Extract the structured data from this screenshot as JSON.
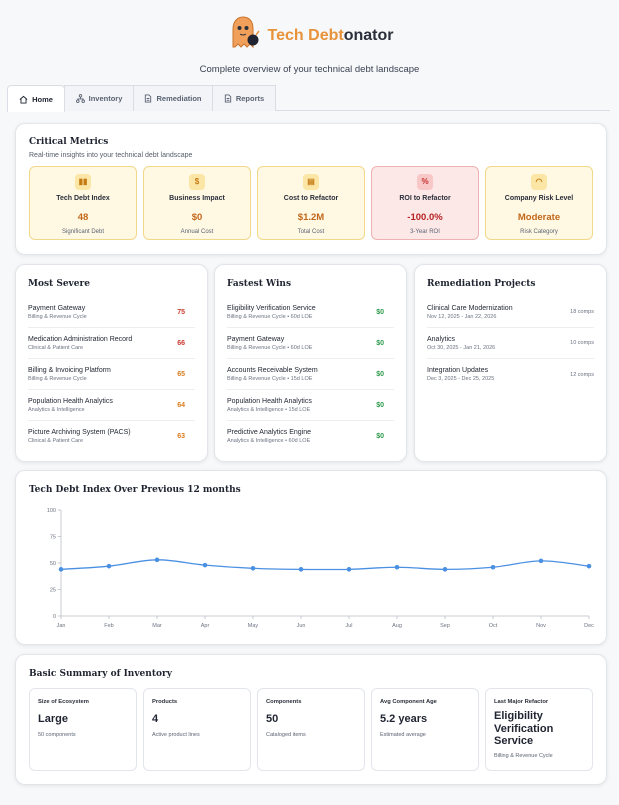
{
  "header": {
    "title_part1": "Tech Debt",
    "title_part2": "onator",
    "subtitle": "Complete overview of your technical debt landscape",
    "logo_icon": "ghost-mascot-icon"
  },
  "tabs": [
    {
      "label": "Home",
      "icon": "home-icon",
      "active": true
    },
    {
      "label": "Inventory",
      "icon": "hierarchy-icon",
      "active": false
    },
    {
      "label": "Remediation",
      "icon": "document-icon",
      "active": false
    },
    {
      "label": "Reports",
      "icon": "document-icon",
      "active": false
    }
  ],
  "critical_metrics": {
    "title": "Critical Metrics",
    "subtitle": "Real-time insights into your technical debt landscape",
    "items": [
      {
        "label": "Tech Debt Index",
        "value": "48",
        "caption": "Significant Debt",
        "icon": "chart-icon",
        "glyph": "▮▮"
      },
      {
        "label": "Business Impact",
        "value": "$0",
        "caption": "Annual Cost",
        "icon": "dollar-icon",
        "glyph": "$"
      },
      {
        "label": "Cost to Refactor",
        "value": "$1.2M",
        "caption": "Total Cost",
        "icon": "calculator-icon",
        "glyph": "▤"
      },
      {
        "label": "ROI to Refactor",
        "value": "-100.0%",
        "caption": "3-Year ROI",
        "icon": "percent-icon",
        "glyph": "%"
      },
      {
        "label": "Company Risk Level",
        "value": "Moderate",
        "caption": "Risk Category",
        "icon": "gauge-icon",
        "glyph": "◠"
      }
    ]
  },
  "most_severe": {
    "title": "Most Severe",
    "items": [
      {
        "name": "Payment Gateway",
        "meta": "Billing & Revenue Cycle",
        "value": "75"
      },
      {
        "name": "Medication Administration Record",
        "meta": "Clinical & Patient Care",
        "value": "66"
      },
      {
        "name": "Billing & Invoicing Platform",
        "meta": "Billing & Revenue Cycle",
        "value": "65"
      },
      {
        "name": "Population Health Analytics",
        "meta": "Analytics & Intelligence",
        "value": "64"
      },
      {
        "name": "Picture Archiving System (PACS)",
        "meta": "Clinical & Patient Care",
        "value": "63"
      }
    ]
  },
  "fastest_wins": {
    "title": "Fastest Wins",
    "items": [
      {
        "name": "Eligibility Verification Service",
        "meta": "Billing & Revenue Cycle • 60d LOE",
        "value": "$0"
      },
      {
        "name": "Payment Gateway",
        "meta": "Billing & Revenue Cycle • 60d LOE",
        "value": "$0"
      },
      {
        "name": "Accounts Receivable System",
        "meta": "Billing & Revenue Cycle • 15d LOE",
        "value": "$0"
      },
      {
        "name": "Population Health Analytics",
        "meta": "Analytics & Intelligence • 15d LOE",
        "value": "$0"
      },
      {
        "name": "Predictive Analytics Engine",
        "meta": "Analytics & Intelligence • 60d LOE",
        "value": "$0"
      }
    ]
  },
  "remediation_projects": {
    "title": "Remediation Projects",
    "items": [
      {
        "name": "Clinical Care Modernization",
        "meta": "Nov 12, 2025 - Jan 22, 2026",
        "value": "18 comps"
      },
      {
        "name": "Analytics",
        "meta": "Oct 30, 2025 - Jan 21, 2026",
        "value": "10 comps"
      },
      {
        "name": "Integration Updates",
        "meta": "Dec 3, 2025 - Dec 25, 2025",
        "value": "12 comps"
      }
    ]
  },
  "chart_data": {
    "type": "line",
    "title": "Tech Debt Index Over Previous 12 months",
    "categories": [
      "Jan",
      "Feb",
      "Mar",
      "Apr",
      "May",
      "Jun",
      "Jul",
      "Aug",
      "Sep",
      "Oct",
      "Nov",
      "Dec"
    ],
    "values": [
      44,
      47,
      53,
      48,
      45,
      44,
      44,
      46,
      44,
      46,
      52,
      47
    ],
    "y_ticks": [
      "0",
      "25",
      "50",
      "75",
      "100"
    ],
    "ylim": [
      0,
      100
    ],
    "grid": false,
    "line_color": "#4a90e2"
  },
  "summary": {
    "title": "Basic Summary of Inventory",
    "items": [
      {
        "label": "Size of Ecosystem",
        "value": "Large",
        "caption": "50 components"
      },
      {
        "label": "Products",
        "value": "4",
        "caption": "Active product lines"
      },
      {
        "label": "Components",
        "value": "50",
        "caption": "Cataloged items"
      },
      {
        "label": "Avg Component Age",
        "value": "5.2 years",
        "caption": "Estimated average"
      },
      {
        "label": "Last Major Refactor",
        "value": "Eligibility Verification Service",
        "caption": "Billing & Revenue Cycle"
      }
    ]
  }
}
